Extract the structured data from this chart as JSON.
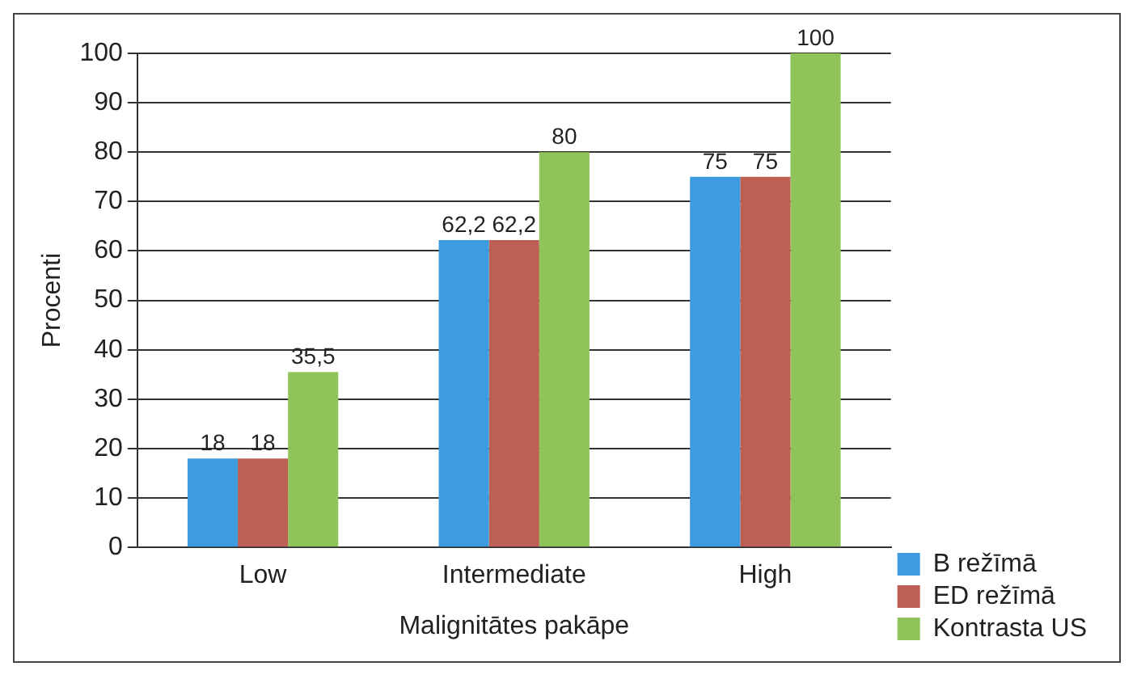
{
  "chart_data": {
    "type": "bar",
    "xlabel": "Malignitātes pakāpe",
    "ylabel": "Procenti",
    "categories": [
      "Low",
      "Intermediate",
      "High"
    ],
    "series": [
      {
        "name": "B režīmā",
        "color": "#3d9be0",
        "values": [
          18,
          62.2,
          75
        ],
        "value_labels": [
          "18",
          "62,2",
          "75"
        ]
      },
      {
        "name": "ED režīmā",
        "color": "#bd5f52",
        "values": [
          18,
          62.2,
          75
        ],
        "value_labels": [
          "18",
          "62,2",
          "75"
        ]
      },
      {
        "name": "Kontrasta US",
        "color": "#8fc45a",
        "values": [
          35.5,
          80,
          100
        ],
        "value_labels": [
          "35,5",
          "80",
          "100"
        ]
      }
    ],
    "ylim": [
      0,
      100
    ],
    "yticks": [
      0,
      10,
      20,
      30,
      40,
      50,
      60,
      70,
      80,
      90,
      100
    ],
    "grid": "y",
    "legend": "bottom right"
  }
}
